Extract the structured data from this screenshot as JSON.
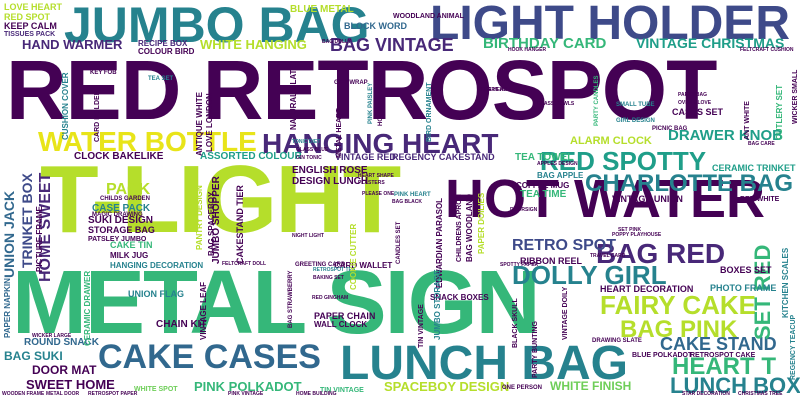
{
  "palette": {
    "purple": "#440154",
    "indigo": "#482878",
    "blue": "#3e4a89",
    "slate": "#31688e",
    "teal": "#26828e",
    "sea": "#1f9e89",
    "green": "#35b779",
    "lime": "#6ece58",
    "yellowgreen": "#b5de2b",
    "yellow": "#e8e419"
  },
  "words": [
    {
      "text": "RED RETROSPOT",
      "color": "#440154"
    },
    {
      "text": "T-LIGHT",
      "color": "#b5de2b"
    },
    {
      "text": "METAL SIGN",
      "color": "#35b779"
    },
    {
      "text": "JUMBO BAG",
      "color": "#26828e"
    },
    {
      "text": "LIGHT HOLDER",
      "color": "#3e4a89"
    },
    {
      "text": "HOT WATER",
      "color": "#440154"
    },
    {
      "text": "LUNCH BAG",
      "color": "#26828e"
    },
    {
      "text": "CAKE CASES",
      "color": "#31688e"
    },
    {
      "text": "HANGING HEART",
      "color": "#482878"
    },
    {
      "text": "WATER BOTTLE",
      "color": "#e8e419"
    },
    {
      "text": "RED SPOTTY",
      "color": "#1f9e89"
    },
    {
      "text": "CHARLOTTE BAG",
      "color": "#26828e"
    },
    {
      "text": "DOLLY GIRL",
      "color": "#26828e"
    },
    {
      "text": "FAIRY CAKE",
      "color": "#b5de2b"
    },
    {
      "text": "BAG RED",
      "color": "#482878"
    },
    {
      "text": "RETRO SPOT",
      "color": "#3e4a89"
    },
    {
      "text": "BAG PINK",
      "color": "#b5de2b"
    },
    {
      "text": "HEART T",
      "color": "#35b779"
    },
    {
      "text": "LUNCH BOX",
      "color": "#26828e"
    },
    {
      "text": "CAKE STAND",
      "color": "#31688e"
    },
    {
      "text": "SET RED",
      "color": "#35b779"
    },
    {
      "text": "BAG VINTAGE",
      "color": "#482878"
    },
    {
      "text": "BIRTHDAY CARD",
      "color": "#35b779"
    },
    {
      "text": "VINTAGE CHRISTMAS",
      "color": "#1f9e89"
    },
    {
      "text": "DRAWER KNOB",
      "color": "#1f9e89"
    },
    {
      "text": "HAND WARMER",
      "color": "#482878"
    },
    {
      "text": "WHITE HANGING",
      "color": "#b5de2b"
    },
    {
      "text": "BLUE METAL",
      "color": "#b5de2b"
    },
    {
      "text": "HOME SWEET",
      "color": "#482878"
    },
    {
      "text": "UNION JACK",
      "color": "#31688e"
    },
    {
      "text": "TRINKET BOX",
      "color": "#3e4a89"
    },
    {
      "text": "SWEET HOME",
      "color": "#440154"
    },
    {
      "text": "PINK POLKADOT",
      "color": "#35b779"
    },
    {
      "text": "SPACEBOY DESIGN",
      "color": "#b5de2b"
    },
    {
      "text": "WHITE FINISH",
      "color": "#6ece58"
    },
    {
      "text": "DOOR MAT",
      "color": "#440154"
    },
    {
      "text": "BAG SUKI",
      "color": "#26828e"
    },
    {
      "text": "ROUND SNACK",
      "color": "#31688e"
    },
    {
      "text": "CLOCK BAKELIKE",
      "color": "#440154"
    },
    {
      "text": "ASSORTED COLOUR",
      "color": "#1f9e89"
    },
    {
      "text": "VINTAGE RED",
      "color": "#482878"
    },
    {
      "text": "REGENCY CAKESTAND",
      "color": "#482878"
    },
    {
      "text": "ALARM CLOCK",
      "color": "#b5de2b"
    },
    {
      "text": "TEA TOWEL",
      "color": "#35b779"
    },
    {
      "text": "PACK",
      "color": "#b5de2b"
    },
    {
      "text": "ENGLISH ROSE",
      "color": "#440154"
    },
    {
      "text": "DESIGN LUNCH",
      "color": "#440154"
    },
    {
      "text": "LOVE HEART",
      "color": "#b5de2b"
    },
    {
      "text": "RED SPOT",
      "color": "#b5de2b"
    },
    {
      "text": "KEEP CALM",
      "color": "#440154"
    },
    {
      "text": "TISSUES PACK",
      "color": "#482878"
    },
    {
      "text": "RECIPE BOX",
      "color": "#482878"
    },
    {
      "text": "COLOUR BIRD",
      "color": "#440154"
    },
    {
      "text": "BLOCK WORD",
      "color": "#31688e"
    },
    {
      "text": "WOODLAND ANIMAL",
      "color": "#440154"
    },
    {
      "text": "CASES SET",
      "color": "#440154"
    },
    {
      "text": "CERAMIC TRINKET",
      "color": "#1f9e89"
    },
    {
      "text": "VINTAGE UNION",
      "color": "#440154"
    },
    {
      "text": "HEART DECORATION",
      "color": "#440154"
    },
    {
      "text": "PHOTO FRAME",
      "color": "#26828e"
    },
    {
      "text": "BOXES SET",
      "color": "#440154"
    },
    {
      "text": "RIBBON REEL",
      "color": "#440154"
    },
    {
      "text": "SNACK BOXES",
      "color": "#440154"
    },
    {
      "text": "PAPER CHAIN",
      "color": "#440154"
    },
    {
      "text": "CHAIN KIT",
      "color": "#440154"
    },
    {
      "text": "CARD WALLET",
      "color": "#440154"
    },
    {
      "text": "WALL CLOCK",
      "color": "#440154"
    },
    {
      "text": "UNION FLAG",
      "color": "#26828e"
    },
    {
      "text": "HANGING DECORATION",
      "color": "#26828e"
    },
    {
      "text": "MILK JUG",
      "color": "#440154"
    },
    {
      "text": "CAKE TIN",
      "color": "#35b779"
    },
    {
      "text": "SUKI DESIGN",
      "color": "#440154"
    },
    {
      "text": "STORAGE BAG",
      "color": "#440154"
    },
    {
      "text": "PATSLEY JUMBO",
      "color": "#440154"
    },
    {
      "text": "CASE PACK",
      "color": "#26828e"
    },
    {
      "text": "MAGIC DRAWING",
      "color": "#440154"
    },
    {
      "text": "CHILDS GARDEN",
      "color": "#440154"
    },
    {
      "text": "COFFEE MUG",
      "color": "#440154"
    },
    {
      "text": "TEA TIME",
      "color": "#35b779"
    },
    {
      "text": "BAG APPLE",
      "color": "#26828e"
    },
    {
      "text": "BLUE POLKADOT",
      "color": "#440154"
    },
    {
      "text": "RETROSPOT CAKE",
      "color": "#440154"
    },
    {
      "text": "WHITE SPOT",
      "color": "#6ece58"
    },
    {
      "text": "TIN VINTAGE",
      "color": "#35b779"
    },
    {
      "text": "ONE PERSON",
      "color": "#440154"
    },
    {
      "text": "GREETING CARD",
      "color": "#440154"
    },
    {
      "text": "HEART SHAPE",
      "color": "#440154"
    },
    {
      "text": "PLASTERS",
      "color": "#440154"
    },
    {
      "text": "PINK HEART",
      "color": "#26828e"
    },
    {
      "text": "BAG BLACK",
      "color": "#440154"
    },
    {
      "text": "RED GINGHAM",
      "color": "#440154"
    },
    {
      "text": "RETROSPOT TEA",
      "color": "#26828e"
    },
    {
      "text": "BAKING SET",
      "color": "#440154"
    },
    {
      "text": "BAG STRAWBERRY",
      "color": "#440154"
    },
    {
      "text": "SMALL TUBE",
      "color": "#26828e"
    },
    {
      "text": "GIRL DESIGN",
      "color": "#26828e"
    },
    {
      "text": "PICNIC BAG",
      "color": "#440154"
    },
    {
      "text": "HEART HOT",
      "color": "#440154"
    },
    {
      "text": "GLASS BOWLS",
      "color": "#440154"
    },
    {
      "text": "PARTY BAG",
      "color": "#440154"
    },
    {
      "text": "OVEN GLOVE",
      "color": "#440154"
    },
    {
      "text": "PLEASE ONE",
      "color": "#440154"
    },
    {
      "text": "APPLES DESIGN",
      "color": "#440154"
    },
    {
      "text": "DOORSIGN",
      "color": "#440154"
    },
    {
      "text": "DRAWING SLATE",
      "color": "#440154"
    },
    {
      "text": "NIGHT LIGHT",
      "color": "#440154"
    },
    {
      "text": "ANTIQUE WHITE",
      "color": "#440154"
    },
    {
      "text": "LOVE LONDON",
      "color": "#440154"
    },
    {
      "text": "CARD HOLDER",
      "color": "#440154"
    },
    {
      "text": "METAL HEART",
      "color": "#440154"
    },
    {
      "text": "NATURAL SLATE",
      "color": "#440154"
    },
    {
      "text": "CUSHION COVER",
      "color": "#26828e"
    },
    {
      "text": "PINK PAISLEY",
      "color": "#26828e"
    },
    {
      "text": "HOLDER HANGING",
      "color": "#440154"
    },
    {
      "text": "BIRD ORNAMENT",
      "color": "#26828e"
    },
    {
      "text": "PARTY CANDLES",
      "color": "#35b779"
    },
    {
      "text": "PAPER DOILIES",
      "color": "#b5de2b"
    },
    {
      "text": "BAG WOODLAND",
      "color": "#440154"
    },
    {
      "text": "EDWARDIAN PARASOL",
      "color": "#440154"
    },
    {
      "text": "JUMBO STORAGE",
      "color": "#26828e"
    },
    {
      "text": "COOKIE CUTTER",
      "color": "#b5de2b"
    },
    {
      "text": "JUMBO SHOPPER",
      "color": "#440154"
    },
    {
      "text": "CAKESTAND TIER",
      "color": "#440154"
    },
    {
      "text": "PANTRY DESIGN",
      "color": "#b5de2b"
    },
    {
      "text": "BAG SPACEBOY",
      "color": "#440154"
    },
    {
      "text": "CERAMIC DRAWER",
      "color": "#35b779"
    },
    {
      "text": "PICTURE FRAME",
      "color": "#440154"
    },
    {
      "text": "PAPER NAPKIN",
      "color": "#31688e"
    },
    {
      "text": "VINTAGE LEAF",
      "color": "#440154"
    },
    {
      "text": "KITCHEN SCALES",
      "color": "#26828e"
    },
    {
      "text": "REGENCY TEACUP",
      "color": "#26828e"
    },
    {
      "text": "CUTLERY SET",
      "color": "#35b779"
    },
    {
      "text": "ANT WHITE",
      "color": "#440154"
    },
    {
      "text": "WICKER SMALL",
      "color": "#440154"
    },
    {
      "text": "CHILDRENS APRON",
      "color": "#440154"
    },
    {
      "text": "BLACK SKULL",
      "color": "#440154"
    },
    {
      "text": "TIN VINTAGE",
      "color": "#440154"
    },
    {
      "text": "PARTY BUNTING",
      "color": "#440154"
    },
    {
      "text": "VINTAGE DOILY",
      "color": "#440154"
    },
    {
      "text": "CANDLES SET",
      "color": "#440154"
    },
    {
      "text": "TEA SET",
      "color": "#26828e"
    },
    {
      "text": "KEY FOB",
      "color": "#440154"
    },
    {
      "text": "GIFT WRAP",
      "color": "#440154"
    },
    {
      "text": "BAG DOLLY",
      "color": "#440154"
    },
    {
      "text": "HOOK HANGER",
      "color": "#440154"
    },
    {
      "text": "FELTCRAFT CUSHION",
      "color": "#440154"
    },
    {
      "text": "GLASS BLUE",
      "color": "#440154"
    },
    {
      "text": "GIN TONIC",
      "color": "#440154"
    },
    {
      "text": "TONIC DIET",
      "color": "#26828e"
    },
    {
      "text": "SET PINK",
      "color": "#440154"
    },
    {
      "text": "RED WHITE",
      "color": "#440154"
    },
    {
      "text": "BAG CARE",
      "color": "#440154"
    },
    {
      "text": "POPPY PLAYHOUSE",
      "color": "#440154"
    },
    {
      "text": "TRAVEL CARD",
      "color": "#440154"
    },
    {
      "text": "SPOTTY PAPER",
      "color": "#440154"
    },
    {
      "text": "FELTCRAFT DOLL",
      "color": "#440154"
    },
    {
      "text": "WICKER LARGE",
      "color": "#440154"
    },
    {
      "text": "METAL DOOR",
      "color": "#440154"
    },
    {
      "text": "RETROSPOT PAPER",
      "color": "#440154"
    },
    {
      "text": "WOODEN FRAME",
      "color": "#440154"
    },
    {
      "text": "PINK VINTAGE",
      "color": "#440154"
    },
    {
      "text": "HOME BUILDING",
      "color": "#440154"
    },
    {
      "text": "CHRISTMAS TREE",
      "color": "#440154"
    },
    {
      "text": "STAR DECORATION",
      "color": "#440154"
    },
    {
      "text": "BLUE HEART",
      "color": "#440154"
    }
  ]
}
